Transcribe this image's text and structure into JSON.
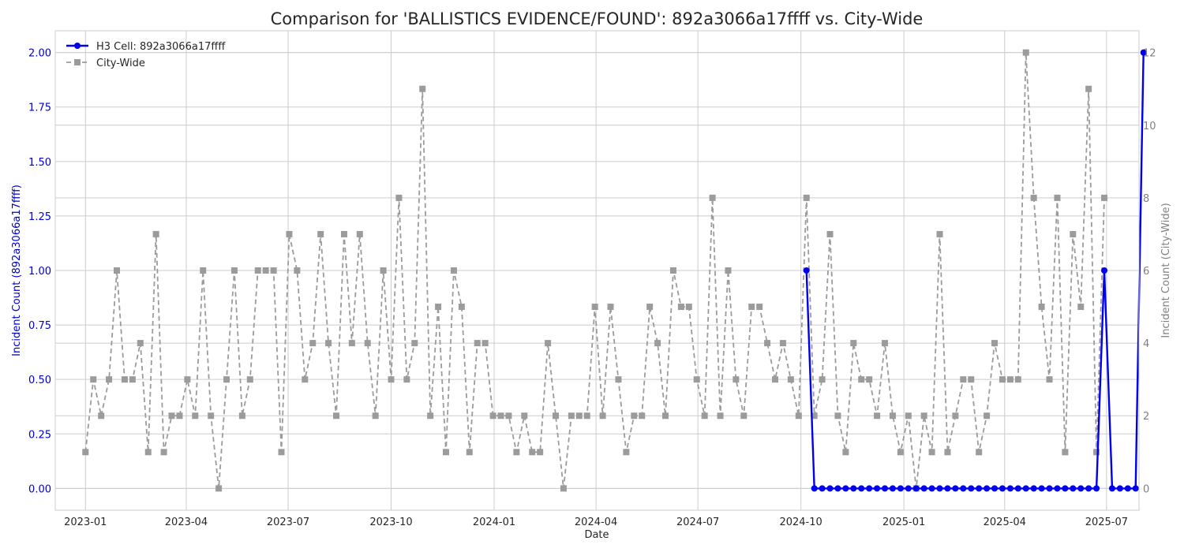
{
  "chart_data": {
    "type": "line",
    "title": "Comparison for 'BALLISTICS EVIDENCE/FOUND': 892a3066a17ffff vs. City-Wide",
    "xlabel": "Date",
    "ylabel_left": "Incident Count (892a3066a17ffff)",
    "ylabel_right": "Incident Count (City-Wide)",
    "x_range": [
      "2022-12-05",
      "2025-07-30"
    ],
    "ylim_left": [
      -0.1,
      2.1
    ],
    "ylim_right": [
      -0.6,
      12.6
    ],
    "x_ticks": [
      {
        "date": "2023-01-01",
        "label": "2023-01"
      },
      {
        "date": "2023-04-01",
        "label": "2023-04"
      },
      {
        "date": "2023-07-01",
        "label": "2023-07"
      },
      {
        "date": "2023-10-01",
        "label": "2023-10"
      },
      {
        "date": "2024-01-01",
        "label": "2024-01"
      },
      {
        "date": "2024-04-01",
        "label": "2024-04"
      },
      {
        "date": "2024-07-01",
        "label": "2024-07"
      },
      {
        "date": "2024-10-01",
        "label": "2024-10"
      },
      {
        "date": "2025-01-01",
        "label": "2025-01"
      },
      {
        "date": "2025-04-01",
        "label": "2025-04"
      },
      {
        "date": "2025-07-01",
        "label": "2025-07"
      }
    ],
    "y_ticks_left": [
      "0.00",
      "0.25",
      "0.50",
      "0.75",
      "1.00",
      "1.25",
      "1.50",
      "1.75",
      "2.00"
    ],
    "y_ticks_right": [
      "0",
      "2",
      "4",
      "6",
      "8",
      "10",
      "12"
    ],
    "grid": true,
    "legend_position": "top-left",
    "colors": {
      "cell": "#0000ee",
      "city": "#9b9b9b",
      "left_axis": "#0000cc",
      "right_axis": "#808080"
    },
    "series": [
      {
        "name": "H3 Cell: 892a3066a17ffff",
        "axis": "left",
        "style": "solid-circle",
        "start": "2024-10-06",
        "step_days": 7,
        "values": [
          1,
          0,
          0,
          0,
          0,
          0,
          0,
          0,
          0,
          0,
          0,
          0,
          0,
          0,
          0,
          0,
          0,
          0,
          0,
          0,
          0,
          0,
          0,
          0,
          0,
          0,
          0,
          0,
          0,
          0,
          0,
          0,
          0,
          0,
          0,
          0,
          0,
          0,
          1,
          0,
          0,
          0,
          0,
          2
        ]
      },
      {
        "name": "City-Wide",
        "axis": "right",
        "style": "dashed-square",
        "start": "2023-01-01",
        "step_days": 7,
        "values": [
          1,
          3,
          2,
          3,
          6,
          3,
          3,
          4,
          1,
          7,
          1,
          2,
          2,
          3,
          2,
          6,
          2,
          0,
          3,
          6,
          2,
          3,
          6,
          6,
          6,
          1,
          7,
          6,
          3,
          4,
          7,
          4,
          2,
          7,
          4,
          7,
          4,
          2,
          6,
          3,
          8,
          3,
          4,
          11,
          2,
          5,
          1,
          6,
          5,
          1,
          4,
          4,
          2,
          2,
          2,
          1,
          2,
          1,
          1,
          4,
          2,
          0,
          2,
          2,
          2,
          5,
          2,
          5,
          3,
          1,
          2,
          2,
          5,
          4,
          2,
          6,
          5,
          5,
          3,
          2,
          8,
          2,
          6,
          3,
          2,
          5,
          5,
          4,
          3,
          4,
          3,
          2,
          8,
          2,
          3,
          7,
          2,
          1,
          4,
          3,
          3,
          2,
          4,
          2,
          1,
          2,
          0,
          2,
          1,
          7,
          1,
          2,
          3,
          3,
          1,
          2,
          4,
          3,
          3,
          3,
          12,
          8,
          5,
          3,
          8,
          1,
          7,
          5,
          11,
          1,
          8
        ]
      }
    ]
  }
}
